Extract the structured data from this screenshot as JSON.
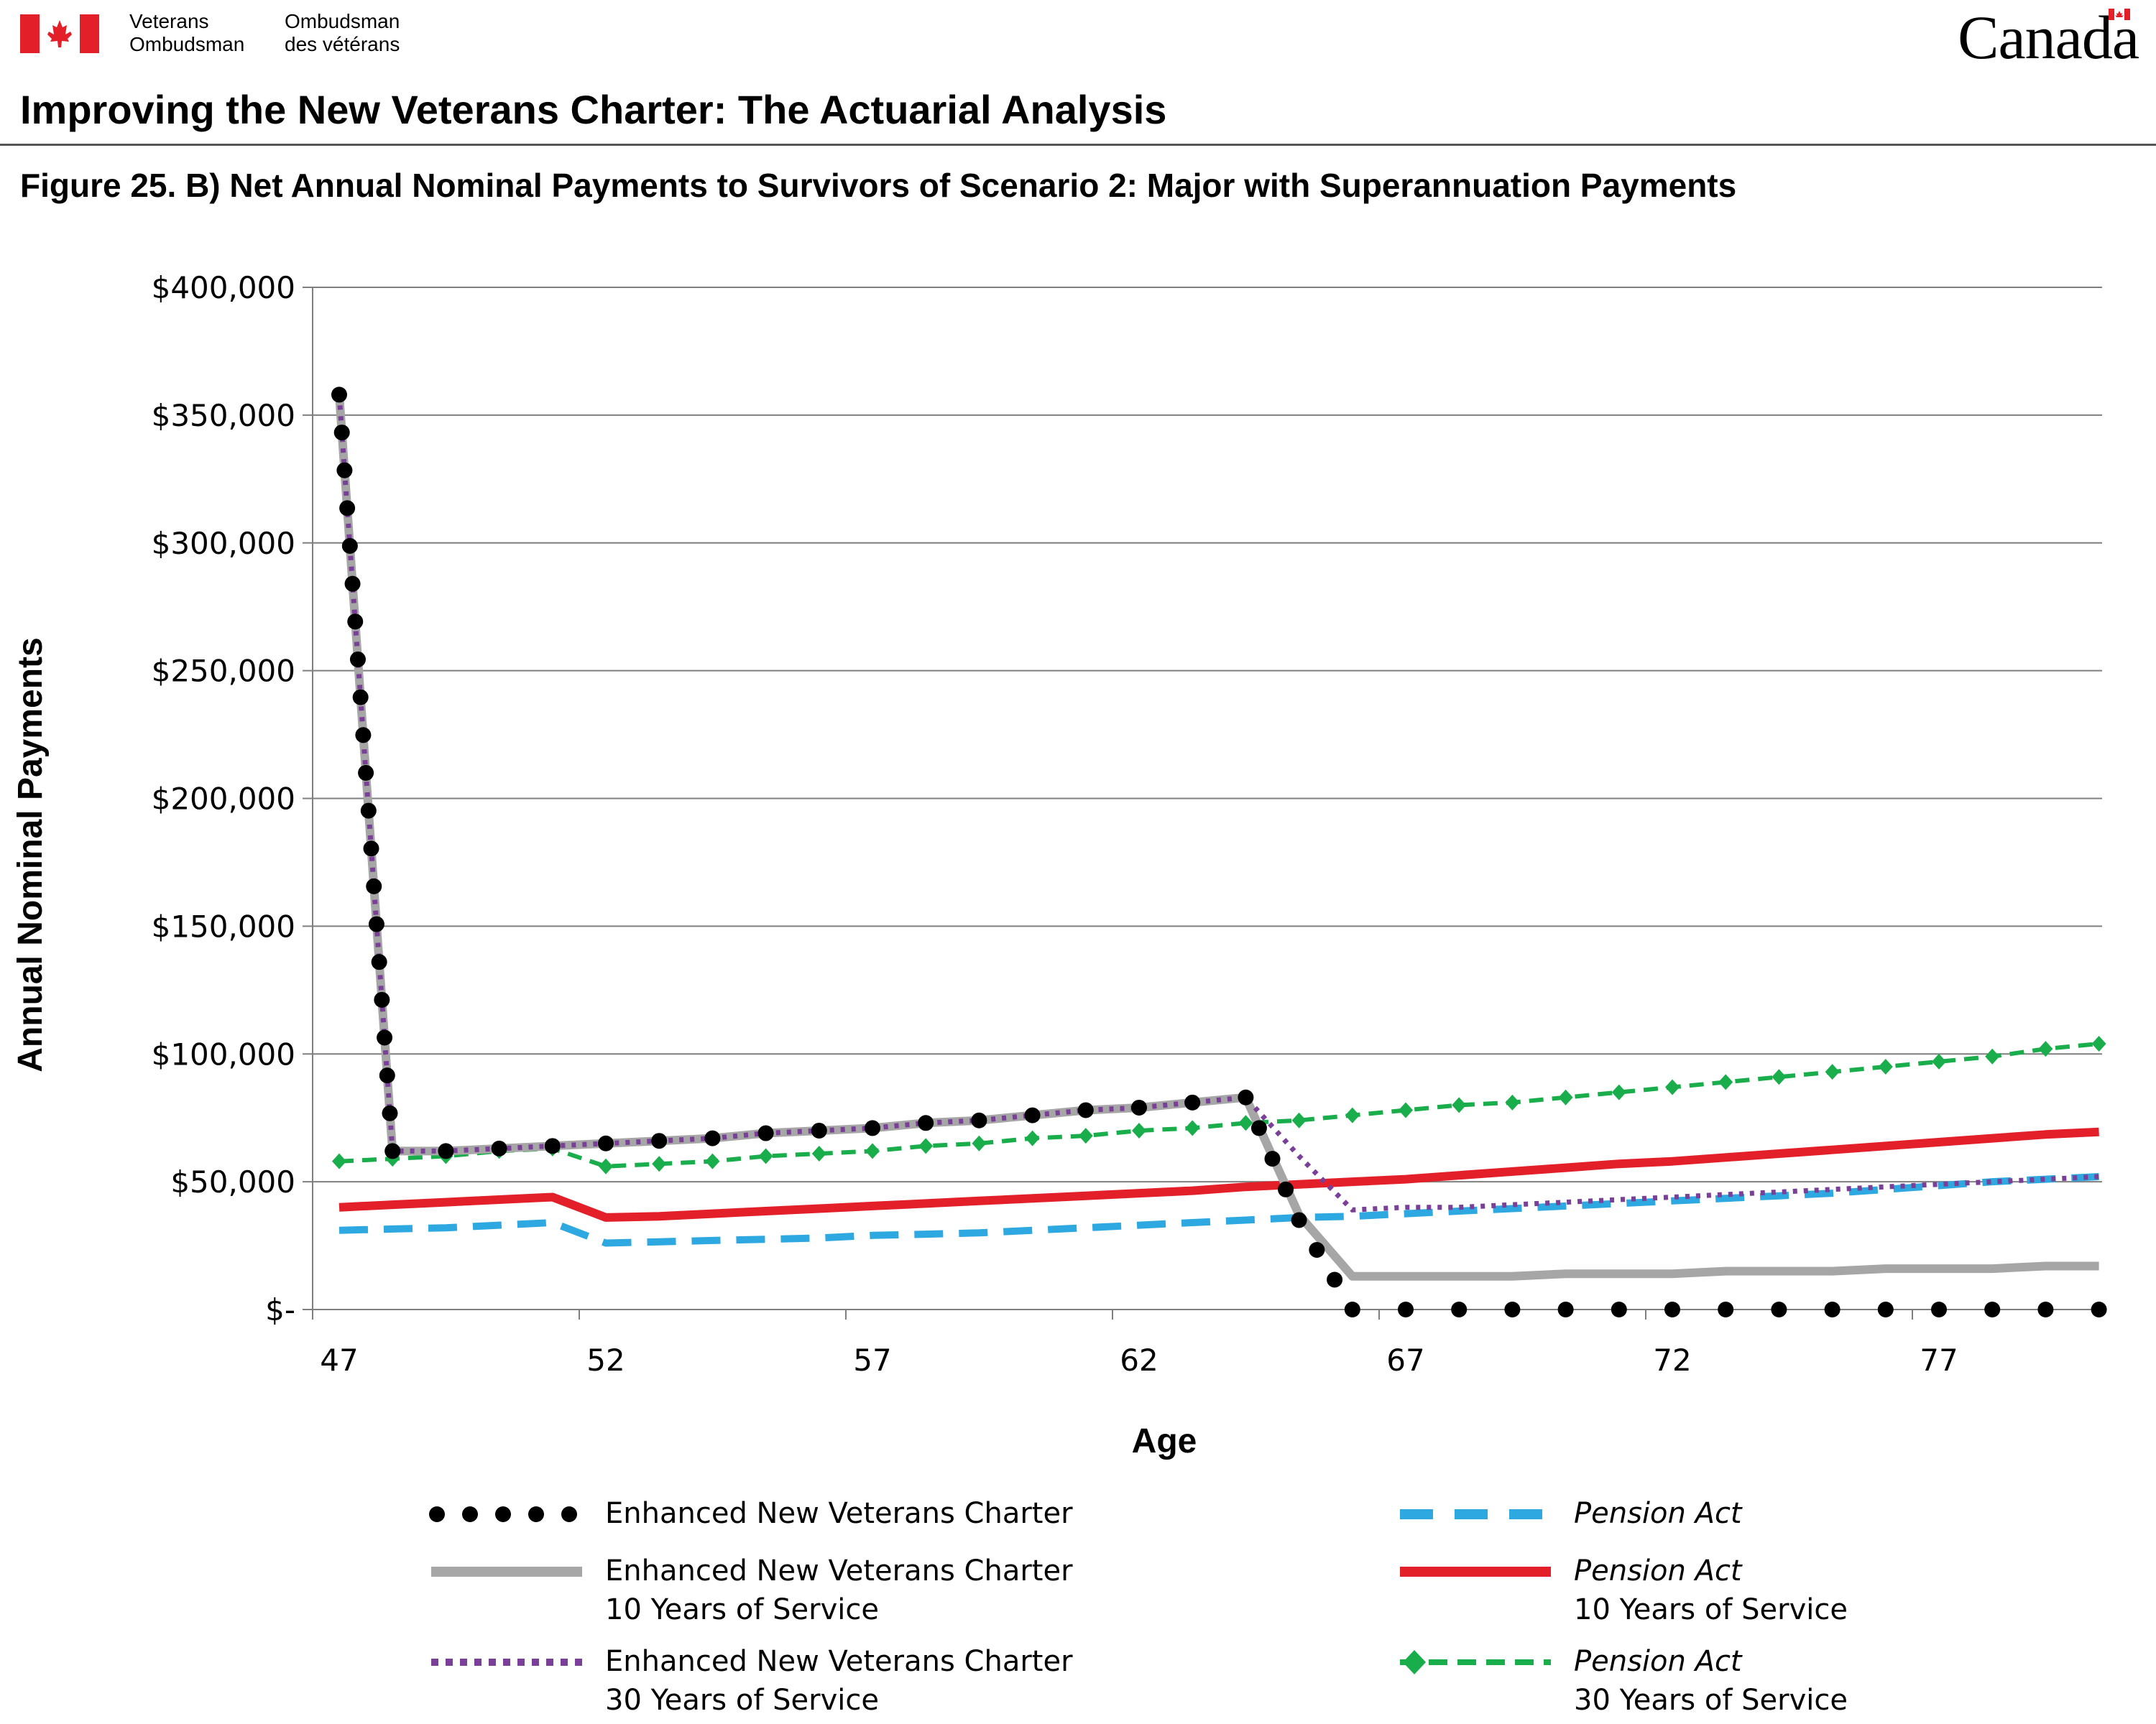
{
  "header": {
    "org_en_line1": "Veterans",
    "org_en_line2": "Ombudsman",
    "org_fr_line1": "Ombudsman",
    "org_fr_line2": "des vétérans",
    "wordmark": "Canada",
    "page_title": "Improving the New Veterans Charter: The Actuarial Analysis",
    "figure_title": "Figure 25. B) Net Annual Nominal Payments to Survivors of Scenario 2: Major with Superannuation Payments"
  },
  "colors": {
    "flag_red": "#e3202a",
    "black": "#000000",
    "gray": "#a6a6a6",
    "purple": "#7a3f97",
    "blue": "#2ea8e0",
    "red": "#e3202a",
    "green": "#1aad4b",
    "grid": "#7f7f7f"
  },
  "chart_data": {
    "type": "line",
    "xlabel": "Age",
    "ylabel": "Annual Nominal Payments",
    "xlim": [
      47,
      80
    ],
    "ylim": [
      0,
      400000
    ],
    "x_ticks": [
      "47",
      "52",
      "57",
      "62",
      "67",
      "72",
      "77"
    ],
    "y_ticks": [
      "$-",
      "$50,000",
      "$100,000",
      "$150,000",
      "$200,000",
      "$250,000",
      "$300,000",
      "$350,000",
      "$400,000"
    ],
    "grid": "horizontal",
    "legend_position": "bottom",
    "series": [
      {
        "name": "Enhanced New Veterans Charter",
        "style": "round-dots",
        "color": "#000000",
        "points": [
          [
            47,
            358000
          ],
          [
            48,
            62000
          ],
          [
            49,
            62000
          ],
          [
            50,
            63000
          ],
          [
            51,
            64000
          ],
          [
            52,
            65000
          ],
          [
            53,
            66000
          ],
          [
            54,
            67000
          ],
          [
            55,
            69000
          ],
          [
            56,
            70000
          ],
          [
            57,
            71000
          ],
          [
            58,
            73000
          ],
          [
            59,
            74000
          ],
          [
            60,
            76000
          ],
          [
            61,
            78000
          ],
          [
            62,
            79000
          ],
          [
            63,
            81000
          ],
          [
            64,
            83000
          ],
          [
            65,
            35000
          ],
          [
            66,
            0
          ],
          [
            67,
            0
          ],
          [
            68,
            0
          ],
          [
            69,
            0
          ],
          [
            70,
            0
          ],
          [
            71,
            0
          ],
          [
            72,
            0
          ],
          [
            73,
            0
          ],
          [
            74,
            0
          ],
          [
            75,
            0
          ],
          [
            76,
            0
          ],
          [
            77,
            0
          ],
          [
            78,
            0
          ],
          [
            79,
            0
          ],
          [
            80,
            0
          ]
        ]
      },
      {
        "name": "Enhanced New Veterans Charter 10 Years of Service",
        "style": "solid",
        "color": "#a6a6a6",
        "points": [
          [
            47,
            358000
          ],
          [
            48,
            62000
          ],
          [
            49,
            62000
          ],
          [
            50,
            63000
          ],
          [
            51,
            64000
          ],
          [
            52,
            65000
          ],
          [
            53,
            66000
          ],
          [
            54,
            67000
          ],
          [
            55,
            69000
          ],
          [
            56,
            70000
          ],
          [
            57,
            71000
          ],
          [
            58,
            73000
          ],
          [
            59,
            74000
          ],
          [
            60,
            76000
          ],
          [
            61,
            78000
          ],
          [
            62,
            79000
          ],
          [
            63,
            81000
          ],
          [
            64,
            83000
          ],
          [
            65,
            37000
          ],
          [
            66,
            13000
          ],
          [
            67,
            13000
          ],
          [
            68,
            13000
          ],
          [
            69,
            13000
          ],
          [
            70,
            14000
          ],
          [
            71,
            14000
          ],
          [
            72,
            14000
          ],
          [
            73,
            15000
          ],
          [
            74,
            15000
          ],
          [
            75,
            15000
          ],
          [
            76,
            16000
          ],
          [
            77,
            16000
          ],
          [
            78,
            16000
          ],
          [
            79,
            17000
          ],
          [
            80,
            17000
          ]
        ]
      },
      {
        "name": "Enhanced New Veterans Charter 30 Years of Service",
        "style": "square-dots",
        "color": "#7a3f97",
        "points": [
          [
            47,
            358000
          ],
          [
            48,
            62000
          ],
          [
            49,
            62000
          ],
          [
            50,
            63000
          ],
          [
            51,
            64000
          ],
          [
            52,
            65000
          ],
          [
            53,
            66000
          ],
          [
            54,
            67000
          ],
          [
            55,
            69000
          ],
          [
            56,
            70000
          ],
          [
            57,
            71000
          ],
          [
            58,
            73000
          ],
          [
            59,
            74000
          ],
          [
            60,
            76000
          ],
          [
            61,
            78000
          ],
          [
            62,
            79000
          ],
          [
            63,
            81000
          ],
          [
            64,
            83000
          ],
          [
            65,
            60000
          ],
          [
            66,
            39000
          ],
          [
            67,
            40000
          ],
          [
            68,
            40000
          ],
          [
            69,
            41000
          ],
          [
            70,
            42000
          ],
          [
            71,
            43000
          ],
          [
            72,
            44000
          ],
          [
            73,
            45000
          ],
          [
            74,
            46000
          ],
          [
            75,
            47000
          ],
          [
            76,
            48000
          ],
          [
            77,
            49000
          ],
          [
            78,
            50000
          ],
          [
            79,
            51000
          ],
          [
            80,
            52000
          ]
        ]
      },
      {
        "name": "Pension Act",
        "style": "dashed",
        "color": "#2ea8e0",
        "points": [
          [
            47,
            31000
          ],
          [
            48,
            31500
          ],
          [
            49,
            32000
          ],
          [
            50,
            33000
          ],
          [
            51,
            34000
          ],
          [
            52,
            26000
          ],
          [
            53,
            26500
          ],
          [
            54,
            27000
          ],
          [
            55,
            27500
          ],
          [
            56,
            28000
          ],
          [
            57,
            29000
          ],
          [
            58,
            29500
          ],
          [
            59,
            30000
          ],
          [
            60,
            31000
          ],
          [
            61,
            32000
          ],
          [
            62,
            33000
          ],
          [
            63,
            34000
          ],
          [
            64,
            35000
          ],
          [
            65,
            36000
          ],
          [
            66,
            36500
          ],
          [
            67,
            37500
          ],
          [
            68,
            38500
          ],
          [
            69,
            39500
          ],
          [
            70,
            40500
          ],
          [
            71,
            41500
          ],
          [
            72,
            42500
          ],
          [
            73,
            43500
          ],
          [
            74,
            44500
          ],
          [
            75,
            45500
          ],
          [
            76,
            47000
          ],
          [
            77,
            48500
          ],
          [
            78,
            50000
          ],
          [
            79,
            51000
          ],
          [
            80,
            52000
          ]
        ]
      },
      {
        "name": "Pension Act 10 Years of Service",
        "style": "solid",
        "color": "#e3202a",
        "points": [
          [
            47,
            40000
          ],
          [
            48,
            41000
          ],
          [
            49,
            42000
          ],
          [
            50,
            43000
          ],
          [
            51,
            44000
          ],
          [
            52,
            36000
          ],
          [
            53,
            36500
          ],
          [
            54,
            37500
          ],
          [
            55,
            38500
          ],
          [
            56,
            39500
          ],
          [
            57,
            40500
          ],
          [
            58,
            41500
          ],
          [
            59,
            42500
          ],
          [
            60,
            43500
          ],
          [
            61,
            44500
          ],
          [
            62,
            45500
          ],
          [
            63,
            46500
          ],
          [
            64,
            48000
          ],
          [
            65,
            49000
          ],
          [
            66,
            50000
          ],
          [
            67,
            51000
          ],
          [
            68,
            52500
          ],
          [
            69,
            54000
          ],
          [
            70,
            55500
          ],
          [
            71,
            57000
          ],
          [
            72,
            58000
          ],
          [
            73,
            59500
          ],
          [
            74,
            61000
          ],
          [
            75,
            62500
          ],
          [
            76,
            64000
          ],
          [
            77,
            65500
          ],
          [
            78,
            67000
          ],
          [
            79,
            68500
          ],
          [
            80,
            69500
          ]
        ]
      },
      {
        "name": "Pension Act 30 Years of Service",
        "style": "dashed-diamond",
        "color": "#1aad4b",
        "points": [
          [
            47,
            58000
          ],
          [
            48,
            59000
          ],
          [
            49,
            60000
          ],
          [
            50,
            62000
          ],
          [
            51,
            63000
          ],
          [
            52,
            56000
          ],
          [
            53,
            57000
          ],
          [
            54,
            58000
          ],
          [
            55,
            60000
          ],
          [
            56,
            61000
          ],
          [
            57,
            62000
          ],
          [
            58,
            64000
          ],
          [
            59,
            65000
          ],
          [
            60,
            67000
          ],
          [
            61,
            68000
          ],
          [
            62,
            70000
          ],
          [
            63,
            71000
          ],
          [
            64,
            73000
          ],
          [
            65,
            74000
          ],
          [
            66,
            76000
          ],
          [
            67,
            78000
          ],
          [
            68,
            80000
          ],
          [
            69,
            81000
          ],
          [
            70,
            83000
          ],
          [
            71,
            85000
          ],
          [
            72,
            87000
          ],
          [
            73,
            89000
          ],
          [
            74,
            91000
          ],
          [
            75,
            93000
          ],
          [
            76,
            95000
          ],
          [
            77,
            97000
          ],
          [
            78,
            99000
          ],
          [
            79,
            102000
          ],
          [
            80,
            104000
          ]
        ]
      }
    ]
  },
  "legend": {
    "enhc": {
      "line1": "Enhanced New Veterans Charter",
      "line2": ""
    },
    "enhc10": {
      "line1": "Enhanced New Veterans Charter",
      "line2": "10 Years of Service"
    },
    "enhc30": {
      "line1": "Enhanced New Veterans Charter",
      "line2": "30 Years of Service"
    },
    "pa": {
      "line1": "Pension Act",
      "line2": ""
    },
    "pa10": {
      "line1": "Pension Act",
      "line2": "10 Years of Service"
    },
    "pa30": {
      "line1": "Pension Act",
      "line2": "30 Years of Service"
    }
  }
}
